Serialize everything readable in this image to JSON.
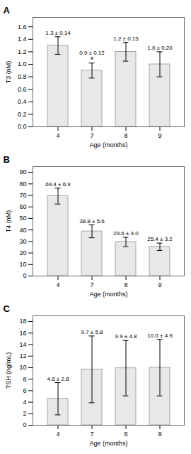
{
  "chart_data": [
    {
      "type": "bar",
      "title": "A",
      "xlabel": "Age (months)",
      "ylabel": "T3 (nM)",
      "categories": [
        "4",
        "7",
        "8",
        "9"
      ],
      "values": [
        1.3,
        0.9,
        1.2,
        1.0
      ],
      "errors": [
        0.14,
        0.12,
        0.15,
        0.2
      ],
      "annotations": [
        "1.3 ± 0.14",
        "0.9 ± 0.12",
        "1.2 ± 0.15",
        "1.0 ± 0.20"
      ],
      "significance": [
        null,
        "*",
        null,
        null
      ],
      "color": "#e8e8e8",
      "ylim": [
        0,
        1.75
      ],
      "yticks": [
        {
          "value": 0,
          "label": "0.0"
        },
        0.2,
        0.4,
        0.6,
        0.8,
        {
          "value": 1,
          "label": "1.0"
        },
        1.2,
        1.4,
        1.6
      ],
      "grid": false
    },
    {
      "type": "bar",
      "title": "B",
      "xlabel": "Age (months)",
      "ylabel": "T4 (nM)",
      "categories": [
        "4",
        "7",
        "8",
        "9"
      ],
      "values": [
        69.4,
        38.8,
        29.6,
        25.4
      ],
      "errors": [
        6.9,
        5.6,
        4.0,
        3.2
      ],
      "annotations": [
        "69.4 ± 6.9",
        "38.8 ± 5.6",
        "29.6 ± 4.0",
        "25.4 ± 3.2"
      ],
      "significance": [
        null,
        null,
        null,
        null
      ],
      "color": "#e8e8e8",
      "ylim": [
        0,
        95
      ],
      "yticks": [
        0,
        10,
        20,
        30,
        40,
        50,
        60,
        70,
        80,
        90
      ],
      "grid": false
    },
    {
      "type": "bar",
      "title": "C",
      "xlabel": "Age (months)",
      "ylabel": "TSH (ng/mL)",
      "categories": [
        "4",
        "7",
        "8",
        "9"
      ],
      "values": [
        4.6,
        9.7,
        9.9,
        10.0
      ],
      "errors": [
        2.8,
        5.8,
        4.8,
        4.9
      ],
      "annotations": [
        "4.6 ± 2.8",
        "9.7 ± 5.8",
        "9.9 ± 4.8",
        "10.0 ± 4.9"
      ],
      "significance": [
        null,
        null,
        null,
        null
      ],
      "color": "#e8e8e8",
      "ylim": [
        0,
        19
      ],
      "yticks": [
        0,
        2,
        4,
        6,
        8,
        10,
        12,
        14,
        16,
        18
      ],
      "grid": false
    }
  ]
}
